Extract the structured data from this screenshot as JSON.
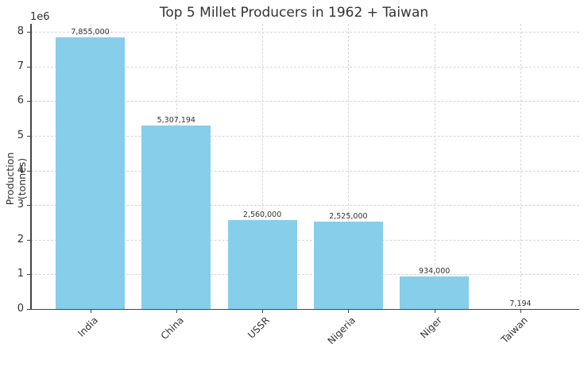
{
  "chart_data": {
    "type": "bar",
    "title": "Top 5 Millet Producers in 1962 + Taiwan",
    "xlabel": "",
    "ylabel": "Production (tonnes)",
    "y_offset_label": "1e6",
    "categories": [
      "India",
      "China",
      "USSR",
      "Nigeria",
      "Niger",
      "Taiwan"
    ],
    "values": [
      7855000,
      5307194,
      2560000,
      2525000,
      934000,
      7194
    ],
    "value_labels": [
      "7,855,000",
      "5,307,194",
      "2,560,000",
      "2,525,000",
      "934,000",
      "7,194"
    ],
    "ylim": [
      0,
      8200000
    ],
    "yticks": [
      0,
      1,
      2,
      3,
      4,
      5,
      6,
      7,
      8
    ],
    "ytick_labels": [
      "0",
      "1",
      "2",
      "3",
      "4",
      "5",
      "6",
      "7",
      "8"
    ],
    "grid": true,
    "bar_color": "#87ceeb",
    "legend": null
  }
}
